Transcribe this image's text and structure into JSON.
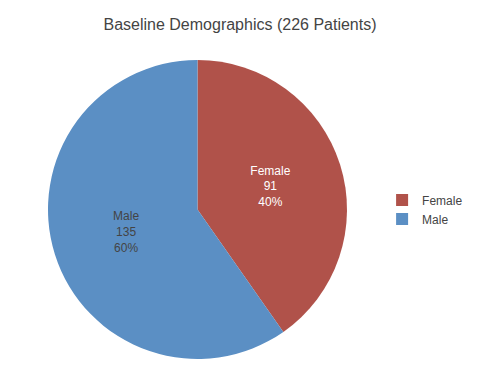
{
  "chart_data": {
    "type": "pie",
    "title": "Baseline Demographics (226 Patients)",
    "categories": [
      "Female",
      "Male"
    ],
    "values": [
      91,
      135
    ],
    "colors": [
      "#b0524a",
      "#5b8fc4"
    ],
    "data_labels": true,
    "value_labels": [
      "Female\n91\n40%",
      "Male\n135\n60%"
    ],
    "legend": "right"
  }
}
